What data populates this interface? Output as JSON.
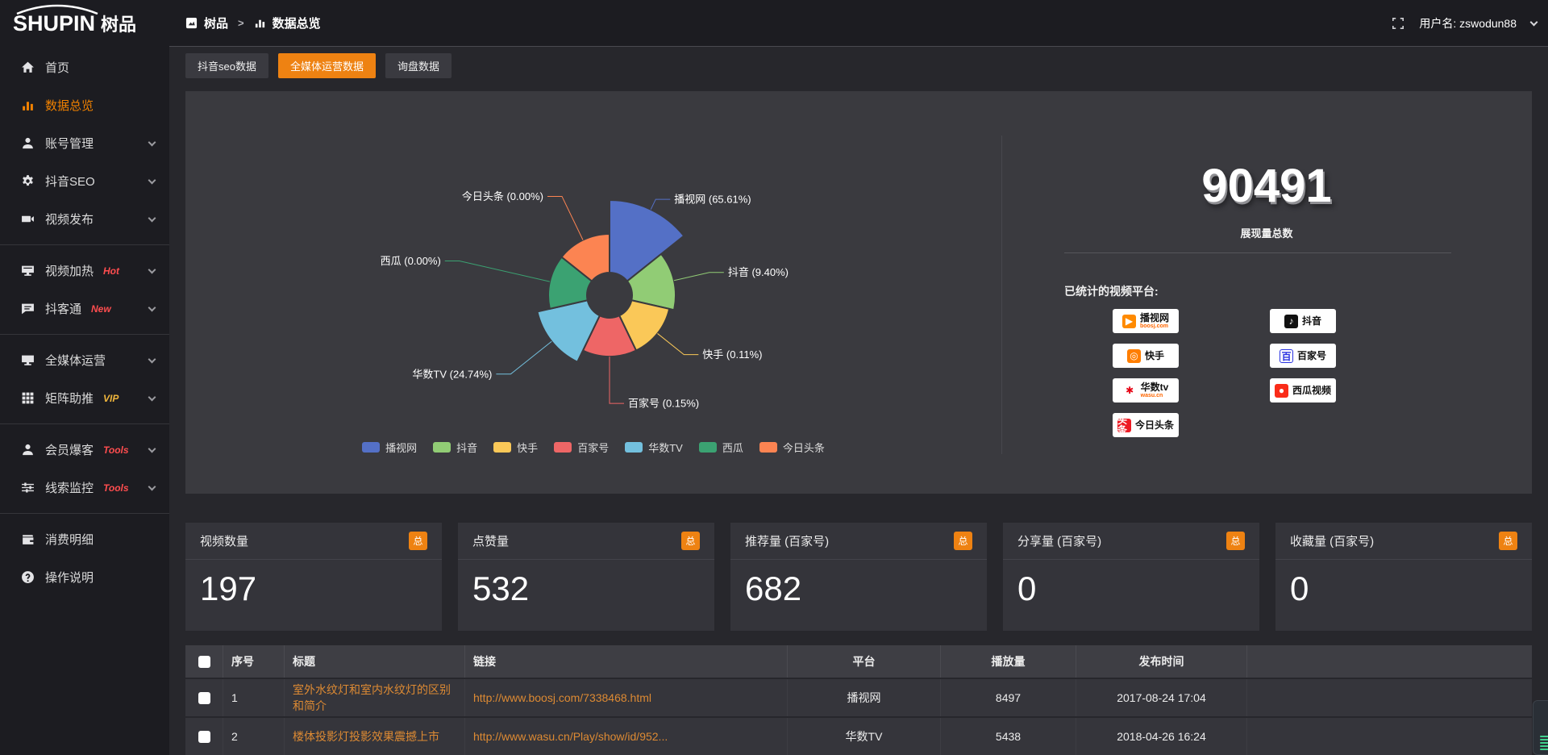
{
  "colors": {
    "accent": "#ee8212",
    "link": "#dd8a33",
    "hot_badge": "#ff4d4f",
    "vip_badge": "#f0b63c"
  },
  "topbar": {
    "logo_en": "SHUPIN",
    "logo_cn": "树品",
    "breadcrumb": {
      "root": "树品",
      "separator": ">",
      "current": "数据总览"
    },
    "user_label": "用户名: zswodun88"
  },
  "sidebar": {
    "items": [
      {
        "label": "首页",
        "icon": "home",
        "active": false,
        "badge": null,
        "has_children": false,
        "divider_after": false
      },
      {
        "label": "数据总览",
        "icon": "chart",
        "active": true,
        "badge": null,
        "has_children": false,
        "divider_after": false
      },
      {
        "label": "账号管理",
        "icon": "user",
        "active": false,
        "badge": null,
        "has_children": true,
        "divider_after": false
      },
      {
        "label": "抖音SEO",
        "icon": "gear",
        "active": false,
        "badge": null,
        "has_children": true,
        "divider_after": false
      },
      {
        "label": "视频发布",
        "icon": "video",
        "active": false,
        "badge": null,
        "has_children": true,
        "divider_after": true
      },
      {
        "label": "视频加热",
        "icon": "display",
        "active": false,
        "badge": "Hot",
        "badge_color": "#ff4d4f",
        "has_children": true,
        "divider_after": false
      },
      {
        "label": "抖客通",
        "icon": "chat",
        "active": false,
        "badge": "New",
        "badge_color": "#ff4d4f",
        "has_children": true,
        "divider_after": true
      },
      {
        "label": "全媒体运营",
        "icon": "monitor",
        "active": false,
        "badge": null,
        "has_children": true,
        "divider_after": false
      },
      {
        "label": "矩阵助推",
        "icon": "grid",
        "active": false,
        "badge": "VIP",
        "badge_color": "#f0b63c",
        "has_children": true,
        "divider_after": true
      },
      {
        "label": "会员爆客",
        "icon": "user",
        "active": false,
        "badge": "Tools",
        "badge_color": "#ff4d4f",
        "has_children": true,
        "divider_after": false
      },
      {
        "label": "线索监控",
        "icon": "sliders",
        "active": false,
        "badge": "Tools",
        "badge_color": "#ff4d4f",
        "has_children": true,
        "divider_after": true
      },
      {
        "label": "消费明细",
        "icon": "wallet",
        "active": false,
        "badge": null,
        "has_children": false,
        "divider_after": false
      },
      {
        "label": "操作说明",
        "icon": "question",
        "active": false,
        "badge": null,
        "has_children": false,
        "divider_after": false
      }
    ]
  },
  "tabs": [
    {
      "label": "抖音seo数据",
      "active": false
    },
    {
      "label": "全媒体运营数据",
      "active": true
    },
    {
      "label": "询盘数据",
      "active": false
    }
  ],
  "chart_data": {
    "type": "pie",
    "subtype": "nightingale-rose",
    "title": "",
    "label_format": "{name} ({percent}%)",
    "legend_position": "bottom",
    "items": [
      {
        "name": "播视网",
        "percent": 65.61,
        "color": "#5470c6"
      },
      {
        "name": "抖音",
        "percent": 9.4,
        "color": "#91cc75"
      },
      {
        "name": "快手",
        "percent": 0.11,
        "color": "#fac858"
      },
      {
        "name": "百家号",
        "percent": 0.15,
        "color": "#ee6666"
      },
      {
        "name": "华数TV",
        "percent": 24.74,
        "color": "#73c0de"
      },
      {
        "name": "西瓜",
        "percent": 0.0,
        "color": "#3ba272"
      },
      {
        "name": "今日头条",
        "percent": 0.0,
        "color": "#fc8452"
      }
    ]
  },
  "summary": {
    "total_value": "90491",
    "total_label": "展现量总数",
    "platforms_label": "已统计的视频平台:",
    "platform_columns": [
      [
        {
          "name": "播视网",
          "sub": "boosj.com",
          "logo": "boosj"
        },
        {
          "name": "快手",
          "sub": "",
          "logo": "kuaishou"
        },
        {
          "name": "华数tv",
          "sub": "wasu.cn",
          "logo": "wasu"
        },
        {
          "name": "今日头条",
          "sub": "",
          "logo": "toutiao"
        }
      ],
      [
        {
          "name": "抖音",
          "sub": "",
          "logo": "douyin"
        },
        {
          "name": "百家号",
          "sub": "",
          "logo": "baijiahao"
        },
        {
          "name": "西瓜视频",
          "sub": "",
          "logo": "xigua"
        }
      ]
    ]
  },
  "stat_cards": [
    {
      "title": "视频数量",
      "badge": "总",
      "value": "197"
    },
    {
      "title": "点赞量",
      "badge": "总",
      "value": "532"
    },
    {
      "title": "推荐量 (百家号)",
      "badge": "总",
      "value": "682"
    },
    {
      "title": "分享量 (百家号)",
      "badge": "总",
      "value": "0"
    },
    {
      "title": "收藏量 (百家号)",
      "badge": "总",
      "value": "0"
    }
  ],
  "table": {
    "headers": [
      "",
      "序号",
      "标题",
      "链接",
      "平台",
      "播放量",
      "发布时间",
      ""
    ],
    "rows": [
      {
        "no": "1",
        "title": "室外水纹灯和室内水纹灯的区别和简介",
        "link": "http://www.boosj.com/7338468.html",
        "platform": "播视网",
        "views": "8497",
        "time": "2017-08-24 17:04"
      },
      {
        "no": "2",
        "title": "楼体投影灯投影效果震撼上市",
        "link": "http://www.wasu.cn/Play/show/id/952...",
        "platform": "华数TV",
        "views": "5438",
        "time": "2018-04-26 16:24"
      }
    ]
  }
}
